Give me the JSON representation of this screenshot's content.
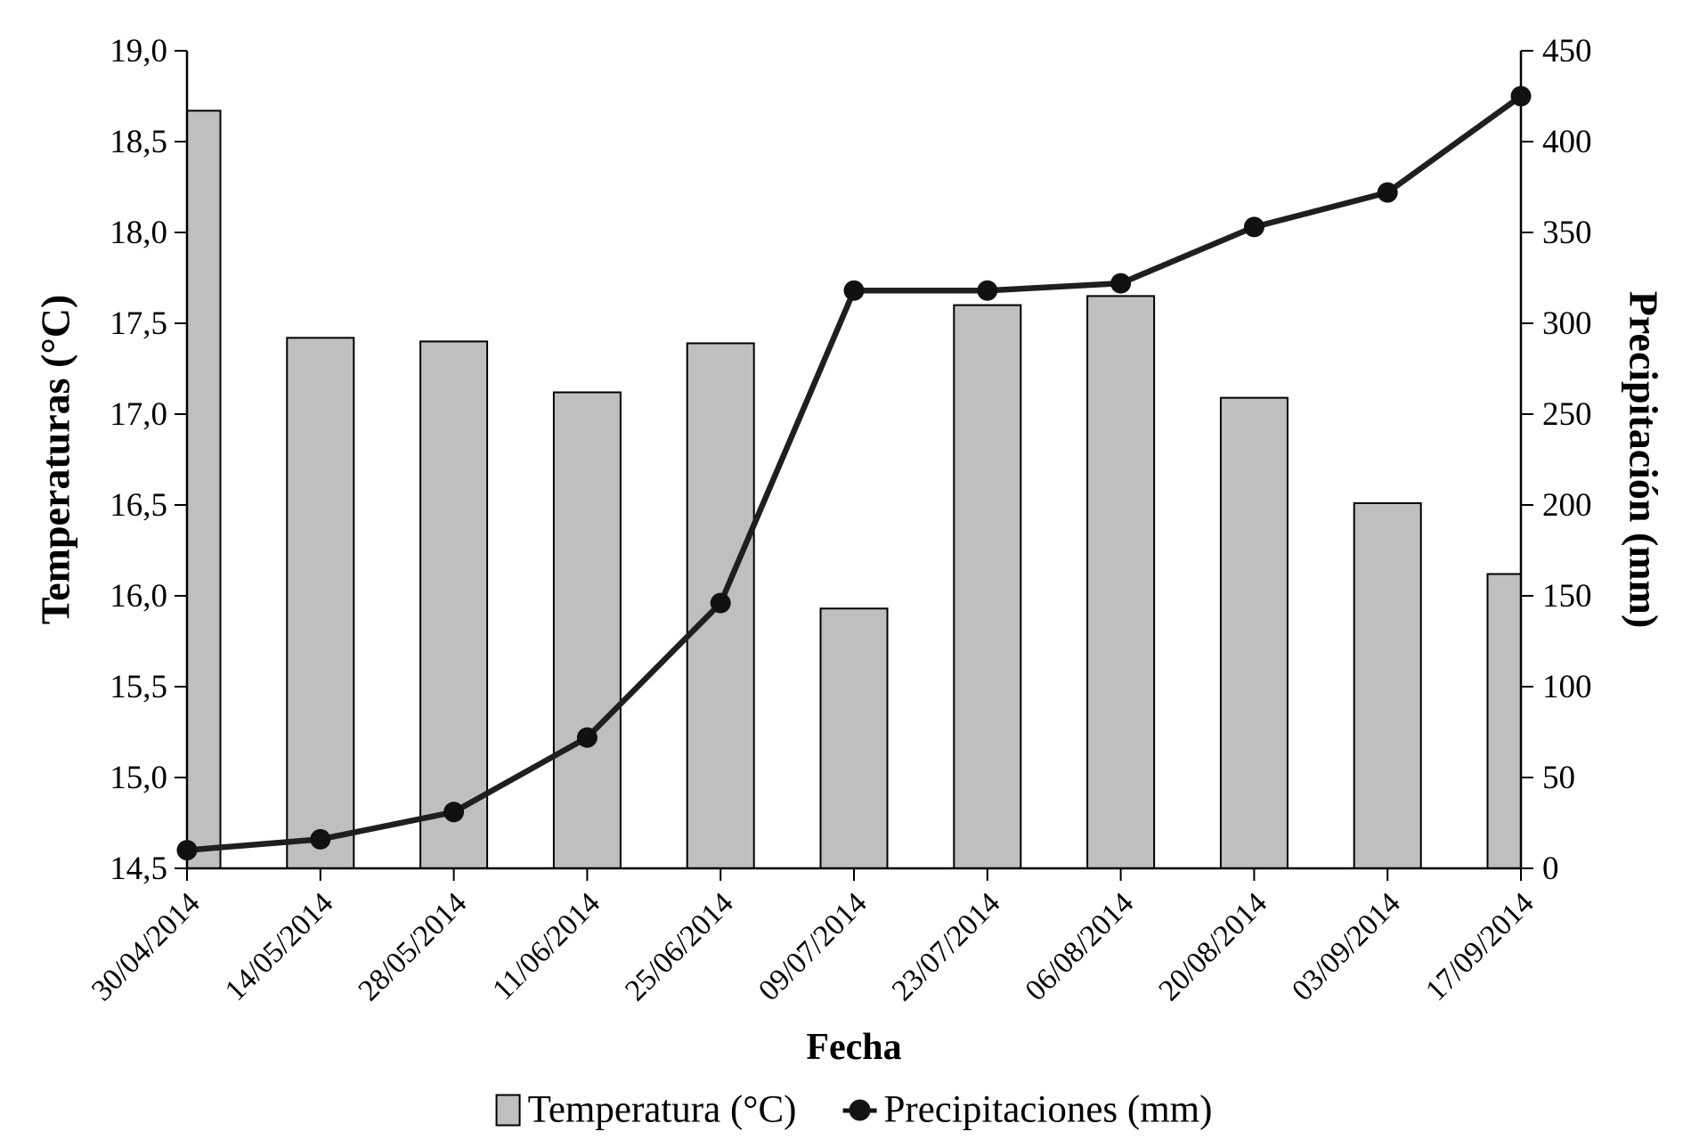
{
  "chart_data": {
    "type": "bar+line",
    "title": "",
    "xlabel": "Fecha",
    "ylabel_left": "Temperaturas (°C)",
    "ylabel_right": "Precipitación (mm)",
    "categories": [
      "30/04/2014",
      "14/05/2014",
      "28/05/2014",
      "11/06/2014",
      "25/06/2014",
      "09/07/2014",
      "23/07/2014",
      "06/08/2014",
      "20/08/2014",
      "03/09/2014",
      "17/09/2014"
    ],
    "series": [
      {
        "name": "Temperatura (°C)",
        "type": "bar",
        "axis": "left",
        "values": [
          18.67,
          17.42,
          17.4,
          17.12,
          17.39,
          15.93,
          17.6,
          17.65,
          17.09,
          16.51,
          16.12
        ]
      },
      {
        "name": "Precipitaciones (mm)",
        "type": "line",
        "axis": "right",
        "values": [
          10,
          16,
          31,
          72,
          146,
          318,
          318,
          322,
          353,
          372,
          425
        ]
      }
    ],
    "y_left": {
      "min": 14.5,
      "max": 19.0,
      "step": 0.5,
      "tick_labels": [
        "14,5",
        "15,0",
        "15,5",
        "16,0",
        "16,5",
        "17,0",
        "17,5",
        "18,0",
        "18,5",
        "19,0"
      ]
    },
    "y_right": {
      "min": 0,
      "max": 450,
      "step": 50,
      "tick_labels": [
        "0",
        "50",
        "100",
        "150",
        "200",
        "250",
        "300",
        "350",
        "400",
        "450"
      ]
    },
    "grid": false,
    "legend_position": "bottom",
    "category_axis_alignment": "on-tick-marks",
    "colors": {
      "bar_fill": "#bfbfbf",
      "bar_stroke": "#000000",
      "line": "#1f1f1f",
      "marker": "#111111",
      "axis": "#000000",
      "text": "#000000",
      "background": "#ffffff"
    }
  }
}
